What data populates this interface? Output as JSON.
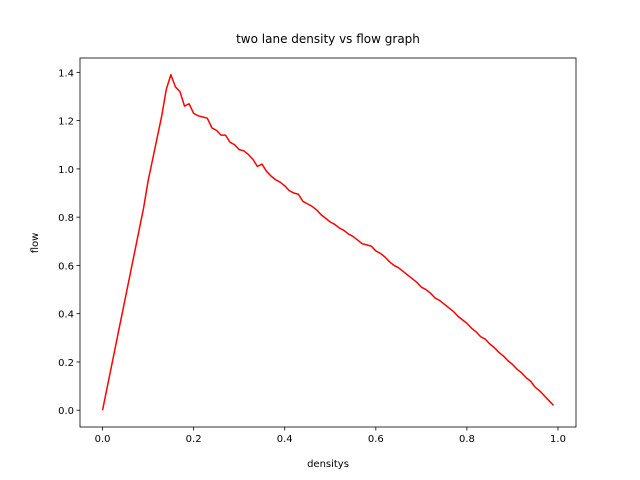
{
  "chart_data": {
    "type": "line",
    "title": "two lane density vs flow graph",
    "x_label": "densitys",
    "y_label": "flow",
    "x": [
      0,
      0.01,
      0.02,
      0.03,
      0.04,
      0.05,
      0.06,
      0.07,
      0.08,
      0.09,
      0.1,
      0.11,
      0.12,
      0.13,
      0.14,
      0.15,
      0.16,
      0.17,
      0.18,
      0.19,
      0.2,
      0.21,
      0.22,
      0.23,
      0.24,
      0.25,
      0.26,
      0.27,
      0.28,
      0.29,
      0.3,
      0.31,
      0.32,
      0.33,
      0.34,
      0.35,
      0.36,
      0.37,
      0.38,
      0.39,
      0.4,
      0.41,
      0.42,
      0.43,
      0.44,
      0.45,
      0.46,
      0.47,
      0.48,
      0.49,
      0.5,
      0.51,
      0.52,
      0.53,
      0.54,
      0.55,
      0.56,
      0.57,
      0.58,
      0.59,
      0.6,
      0.61,
      0.62,
      0.63,
      0.64,
      0.65,
      0.66,
      0.67,
      0.68,
      0.69,
      0.7,
      0.71,
      0.72,
      0.73,
      0.74,
      0.75,
      0.76,
      0.77,
      0.78,
      0.79,
      0.8,
      0.81,
      0.82,
      0.83,
      0.84,
      0.85,
      0.86,
      0.87,
      0.88,
      0.89,
      0.9,
      0.91,
      0.92,
      0.93,
      0.94,
      0.95,
      0.96,
      0.97,
      0.98,
      0.99
    ],
    "series": [
      {
        "color": "#ff0000",
        "values": [
          0,
          0.093,
          0.186,
          0.279,
          0.372,
          0.465,
          0.558,
          0.651,
          0.744,
          0.837,
          0.95,
          1.04,
          1.13,
          1.22,
          1.33,
          1.39,
          1.34,
          1.32,
          1.26,
          1.27,
          1.23,
          1.22,
          1.215,
          1.21,
          1.17,
          1.16,
          1.14,
          1.14,
          1.11,
          1.1,
          1.08,
          1.075,
          1.06,
          1.04,
          1.01,
          1.02,
          0.99,
          0.97,
          0.955,
          0.945,
          0.93,
          0.91,
          0.9,
          0.895,
          0.865,
          0.855,
          0.845,
          0.83,
          0.81,
          0.795,
          0.78,
          0.77,
          0.755,
          0.745,
          0.73,
          0.72,
          0.705,
          0.69,
          0.685,
          0.68,
          0.66,
          0.65,
          0.635,
          0.615,
          0.6,
          0.59,
          0.575,
          0.56,
          0.545,
          0.53,
          0.51,
          0.5,
          0.485,
          0.465,
          0.455,
          0.44,
          0.425,
          0.41,
          0.39,
          0.375,
          0.36,
          0.34,
          0.325,
          0.305,
          0.295,
          0.275,
          0.26,
          0.24,
          0.225,
          0.205,
          0.19,
          0.17,
          0.155,
          0.135,
          0.12,
          0.095,
          0.08,
          0.06,
          0.04,
          0.02
        ]
      }
    ],
    "xlim": [
      -0.0495,
      1.0395
    ],
    "ylim": [
      -0.0695,
      1.4595
    ],
    "xticks": [
      {
        "value": 0,
        "label": "0.0"
      },
      0.2,
      0.4,
      0.6,
      0.8,
      {
        "value": 1,
        "label": "1.0"
      }
    ],
    "yticks": [
      {
        "value": 0,
        "label": "0.0"
      },
      0.2,
      0.4,
      0.6,
      0.8,
      {
        "value": 1,
        "label": "1.0"
      },
      1.2,
      1.4
    ]
  }
}
